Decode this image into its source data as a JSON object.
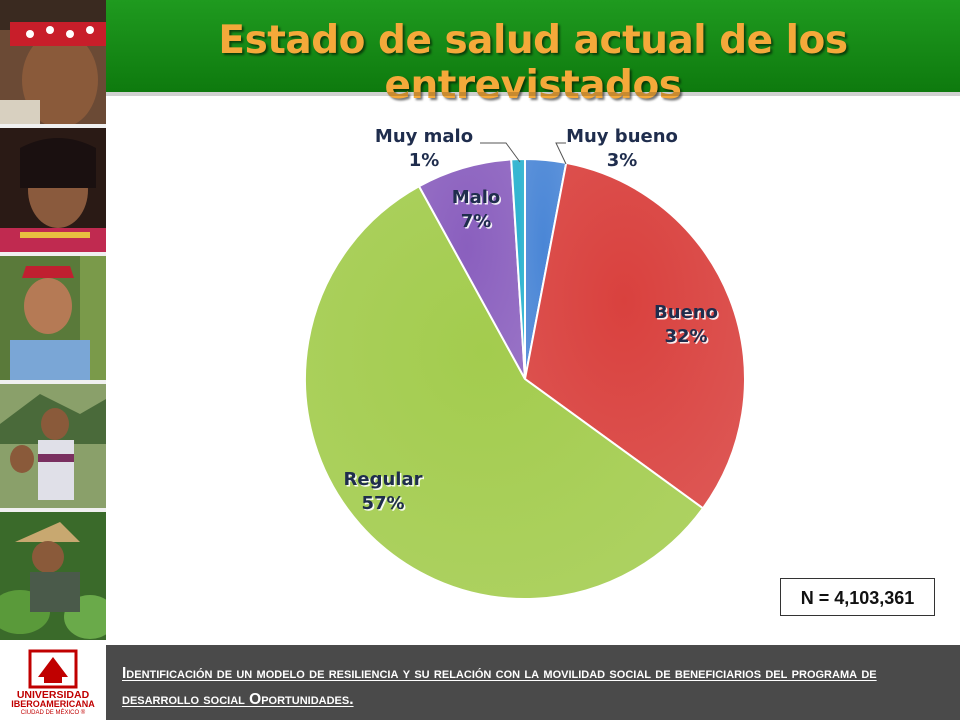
{
  "title": "Estado de salud actual de los entrevistados",
  "sample_size": "N = 4,103,361",
  "footer_text": "Identificación de un modelo de resiliencia y su relación con la movilidad social de beneficiarios del programa de desarrollo social Oportunidades.",
  "logo": {
    "line1": "UNIVERSIDAD",
    "line2": "IBEROAMERICANA",
    "line3": "CIUDAD DE MÉXICO ®"
  },
  "colors": {
    "title_bar": "#118811",
    "title_text": "#f4a93a",
    "footer_bar": "#4a4a4a",
    "logo_red": "#c00000"
  },
  "chart_data": {
    "type": "pie",
    "title": "",
    "slices": [
      {
        "label": "Muy bueno",
        "value": 3,
        "display": "3%",
        "color": "#4a86d6"
      },
      {
        "label": "Bueno",
        "value": 32,
        "display": "32%",
        "color": "#d9413e"
      },
      {
        "label": "Regular",
        "value": 57,
        "display": "57%",
        "color": "#a3cc4e"
      },
      {
        "label": "Malo",
        "value": 7,
        "display": "7%",
        "color": "#8a5fbe"
      },
      {
        "label": "Muy malo",
        "value": 1,
        "display": "1%",
        "color": "#2ab2cf"
      }
    ],
    "legend": "none",
    "data_labels": "category and percent"
  }
}
